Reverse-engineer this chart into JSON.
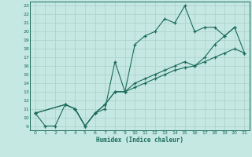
{
  "xlabel": "Humidex (Indice chaleur)",
  "bg_color": "#c5e8e2",
  "grid_color": "#aed4cc",
  "line_color": "#1a6b5a",
  "xlim": [
    -0.5,
    21.5
  ],
  "ylim": [
    8.5,
    23.5
  ],
  "xticks": [
    0,
    1,
    2,
    3,
    4,
    5,
    6,
    7,
    8,
    9,
    10,
    11,
    12,
    13,
    14,
    15,
    16,
    17,
    18,
    19,
    20,
    21
  ],
  "yticks": [
    9,
    10,
    11,
    12,
    13,
    14,
    15,
    16,
    17,
    18,
    19,
    20,
    21,
    22,
    23
  ],
  "series": [
    {
      "x": [
        0,
        1,
        2,
        3,
        4,
        5,
        6,
        7,
        8,
        9,
        10,
        11,
        12,
        13,
        14,
        15,
        16,
        17,
        18,
        19,
        20
      ],
      "y": [
        10.5,
        9.0,
        9.0,
        11.5,
        11.0,
        9.0,
        10.5,
        11.0,
        16.5,
        13.0,
        18.5,
        19.5,
        20.0,
        21.5,
        21.0,
        23.0,
        20.0,
        20.5,
        20.5,
        19.5,
        20.5
      ]
    },
    {
      "x": [
        0,
        3,
        4,
        5,
        6,
        7,
        8,
        9,
        10,
        11,
        12,
        13,
        14,
        15,
        16,
        17,
        18,
        19,
        20,
        21
      ],
      "y": [
        10.5,
        11.5,
        11.0,
        9.0,
        10.5,
        11.5,
        13.0,
        13.0,
        14.0,
        14.5,
        15.0,
        15.5,
        16.0,
        16.5,
        16.0,
        17.0,
        18.5,
        19.5,
        20.5,
        17.5
      ]
    },
    {
      "x": [
        0,
        3,
        4,
        5,
        6,
        7,
        8,
        9,
        10,
        11,
        12,
        13,
        14,
        15,
        16,
        17,
        18,
        19,
        20,
        21
      ],
      "y": [
        10.5,
        11.5,
        11.0,
        9.0,
        10.5,
        11.5,
        13.0,
        13.0,
        13.5,
        14.0,
        14.5,
        15.0,
        15.5,
        15.8,
        16.0,
        16.5,
        17.0,
        17.5,
        18.0,
        17.5
      ]
    }
  ]
}
